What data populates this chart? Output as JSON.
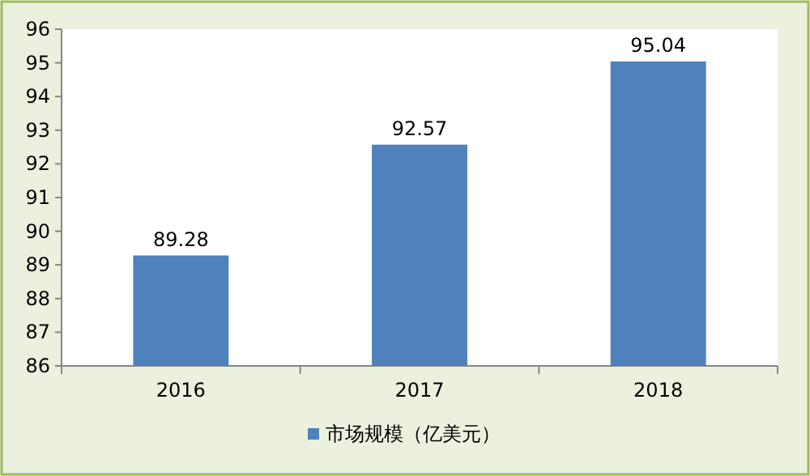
{
  "chart_data": {
    "type": "bar",
    "categories": [
      "2016",
      "2017",
      "2018"
    ],
    "series": [
      {
        "name": "市场规模（亿美元）",
        "color": "#4f81bd",
        "values": [
          89.28,
          92.57,
          95.04
        ]
      }
    ],
    "ylim": [
      86,
      96
    ],
    "yticks": [
      86,
      87,
      88,
      89,
      90,
      91,
      92,
      93,
      94,
      95,
      96
    ],
    "data_labels": true,
    "legend": "bottom"
  }
}
